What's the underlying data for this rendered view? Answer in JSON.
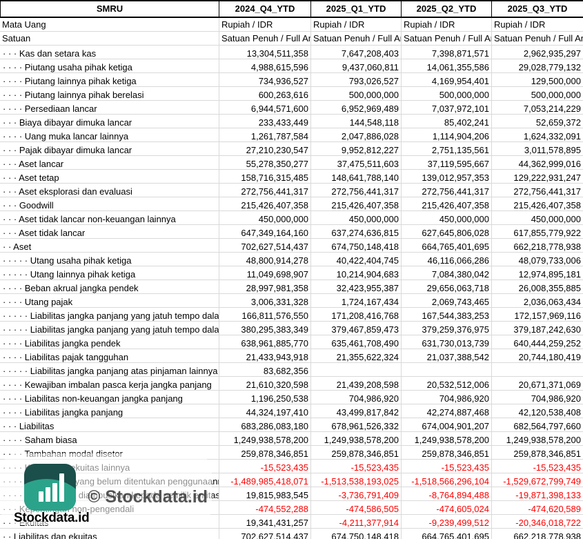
{
  "table": {
    "ticker_header": [
      "SMRU",
      "2024_Q4_YTD",
      "2025_Q1_YTD",
      "2025_Q2_YTD",
      "2025_Q3_YTD"
    ],
    "meta_rows": [
      {
        "label": "Mata Uang",
        "values": [
          "Rupiah / IDR",
          "Rupiah / IDR",
          "Rupiah / IDR",
          "Rupiah / IDR"
        ]
      },
      {
        "label": "Satuan",
        "values": [
          "Satuan Penuh / Full Amount",
          "Satuan Penuh / Full Amount",
          "Satuan Penuh / Full Amount",
          "Satuan Penuh / Full Amount"
        ]
      }
    ],
    "rows": [
      {
        "label": "· · · Kas dan setara kas",
        "values": [
          "13,304,511,358",
          "7,647,208,403",
          "7,398,871,571",
          "2,962,935,297"
        ]
      },
      {
        "label": "· · · · Piutang usaha pihak ketiga",
        "values": [
          "4,988,615,596",
          "9,437,060,811",
          "14,061,355,586",
          "29,028,779,132"
        ]
      },
      {
        "label": "· · · · Piutang lainnya pihak ketiga",
        "values": [
          "734,936,527",
          "793,026,527",
          "4,169,954,401",
          "129,500,000"
        ]
      },
      {
        "label": "· · · · Piutang lainnya pihak berelasi",
        "values": [
          "600,263,616",
          "500,000,000",
          "500,000,000",
          "500,000,000"
        ]
      },
      {
        "label": "· · · · Persediaan lancar",
        "values": [
          "6,944,571,600",
          "6,952,969,489",
          "7,037,972,101",
          "7,053,214,229"
        ]
      },
      {
        "label": "· · · Biaya dibayar dimuka lancar",
        "values": [
          "233,433,449",
          "144,548,118",
          "85,402,241",
          "52,659,372"
        ]
      },
      {
        "label": "· · · · Uang muka lancar lainnya",
        "values": [
          "1,261,787,584",
          "2,047,886,028",
          "1,114,904,206",
          "1,624,332,091"
        ]
      },
      {
        "label": "· · · Pajak dibayar dimuka lancar",
        "values": [
          "27,210,230,547",
          "9,952,812,227",
          "2,751,135,561",
          "3,011,578,895"
        ]
      },
      {
        "label": "· · · Aset lancar",
        "values": [
          "55,278,350,277",
          "37,475,511,603",
          "37,119,595,667",
          "44,362,999,016"
        ]
      },
      {
        "label": "· · · Aset tetap",
        "values": [
          "158,716,315,485",
          "148,641,788,140",
          "139,012,957,353",
          "129,222,931,247"
        ]
      },
      {
        "label": "· · · Aset eksplorasi dan evaluasi",
        "values": [
          "272,756,441,317",
          "272,756,441,317",
          "272,756,441,317",
          "272,756,441,317"
        ]
      },
      {
        "label": "· · · Goodwill",
        "values": [
          "215,426,407,358",
          "215,426,407,358",
          "215,426,407,358",
          "215,426,407,358"
        ]
      },
      {
        "label": "· · · Aset tidak lancar non-keuangan lainnya",
        "values": [
          "450,000,000",
          "450,000,000",
          "450,000,000",
          "450,000,000"
        ]
      },
      {
        "label": "· · · Aset tidak lancar",
        "values": [
          "647,349,164,160",
          "637,274,636,815",
          "627,645,806,028",
          "617,855,779,922"
        ]
      },
      {
        "label": "· · Aset",
        "values": [
          "702,627,514,437",
          "674,750,148,418",
          "664,765,401,695",
          "662,218,778,938"
        ]
      },
      {
        "label": "· · · · · Utang usaha pihak ketiga",
        "values": [
          "48,800,914,278",
          "40,422,404,745",
          "46,116,066,286",
          "48,079,733,006"
        ]
      },
      {
        "label": "· · · · · Utang lainnya pihak ketiga",
        "values": [
          "11,049,698,907",
          "10,214,904,683",
          "7,084,380,042",
          "12,974,895,181"
        ]
      },
      {
        "label": "· · · · Beban akrual jangka pendek",
        "values": [
          "28,997,981,358",
          "32,423,955,387",
          "29,656,063,718",
          "26,008,355,885"
        ]
      },
      {
        "label": "· · · · Utang pajak",
        "values": [
          "3,006,331,328",
          "1,724,167,434",
          "2,069,743,465",
          "2,036,063,434"
        ]
      },
      {
        "label": "· · · · · Liabilitas jangka panjang yang jatuh tempo dalam satu tahun",
        "values": [
          "166,811,576,550",
          "171,208,416,768",
          "167,544,383,253",
          "172,157,969,116"
        ]
      },
      {
        "label": "· · · · · Liabilitas jangka panjang yang jatuh tempo dalam satu tahun",
        "values": [
          "380,295,383,349",
          "379,467,859,473",
          "379,259,376,975",
          "379,187,242,630"
        ]
      },
      {
        "label": "· · · · Liabilitas jangka pendek",
        "values": [
          "638,961,885,770",
          "635,461,708,490",
          "631,730,013,739",
          "640,444,259,252"
        ]
      },
      {
        "label": "· · · · Liabilitas pajak tangguhan",
        "values": [
          "21,433,943,918",
          "21,355,622,324",
          "21,037,388,542",
          "20,744,180,419"
        ]
      },
      {
        "label": "· · · · · Liabilitas jangka panjang atas pinjaman lainnya",
        "values": [
          "83,682,356",
          "",
          "",
          ""
        ]
      },
      {
        "label": "· · · · Kewajiban imbalan pasca kerja jangka panjang",
        "values": [
          "21,610,320,598",
          "21,439,208,598",
          "20,532,512,006",
          "20,671,371,069"
        ]
      },
      {
        "label": "· · · · Liabilitas non-keuangan jangka panjang",
        "values": [
          "1,196,250,538",
          "704,986,920",
          "704,986,920",
          "704,986,920"
        ]
      },
      {
        "label": "· · · · Liabilitas jangka panjang",
        "values": [
          "44,324,197,410",
          "43,499,817,842",
          "42,274,887,468",
          "42,120,538,408"
        ]
      },
      {
        "label": "· · · Liabilitas",
        "values": [
          "683,286,083,180",
          "678,961,526,332",
          "674,004,901,207",
          "682,564,797,660"
        ]
      },
      {
        "label": "· · · · Saham biasa",
        "values": [
          "1,249,938,578,200",
          "1,249,938,578,200",
          "1,249,938,578,200",
          "1,249,938,578,200"
        ]
      },
      {
        "label": "· · · · Tambahan modal disetor",
        "values": [
          "259,878,346,851",
          "259,878,346,851",
          "259,878,346,851",
          "259,878,346,851"
        ]
      },
      {
        "label": "· · · · Komponen ekuitas lainnya",
        "values": [
          "-15,523,435",
          "-15,523,435",
          "-15,523,435",
          "-15,523,435"
        ]
      },
      {
        "label": "· · · · · Saldo laba yang belum ditentukan penggunaannya",
        "values": [
          "-1,489,985,418,071",
          "-1,513,538,193,025",
          "-1,518,566,296,104",
          "-1,529,672,799,749"
        ]
      },
      {
        "label": "· · · · Ekuitas yang diatribusikan kepada pemilik entitas induk",
        "values": [
          "19,815,983,545",
          "-3,736,791,409",
          "-8,764,894,488",
          "-19,871,398,133"
        ]
      },
      {
        "label": "· · · Kepentingan non-pengendali",
        "values": [
          "-474,552,288",
          "-474,586,505",
          "-474,605,024",
          "-474,620,589"
        ]
      },
      {
        "label": "· · · Ekuitas",
        "values": [
          "19,341,431,257",
          "-4,211,377,914",
          "-9,239,499,512",
          "-20,346,018,722"
        ]
      },
      {
        "label": "· · Liabilitas dan ekuitas",
        "values": [
          "702,627,514,437",
          "674,750,148,418",
          "664,765,401,695",
          "662,218,778,938"
        ]
      }
    ]
  },
  "watermark": {
    "brand": "Stockdata.id",
    "copyright": "© Stockdata.id",
    "logo_dark_color": "#1B4F4B",
    "logo_green_color": "#2BA38A"
  },
  "colors": {
    "negative_value": "#FE0000",
    "gridline": "#D9D9D9",
    "header_border": "#000000"
  }
}
